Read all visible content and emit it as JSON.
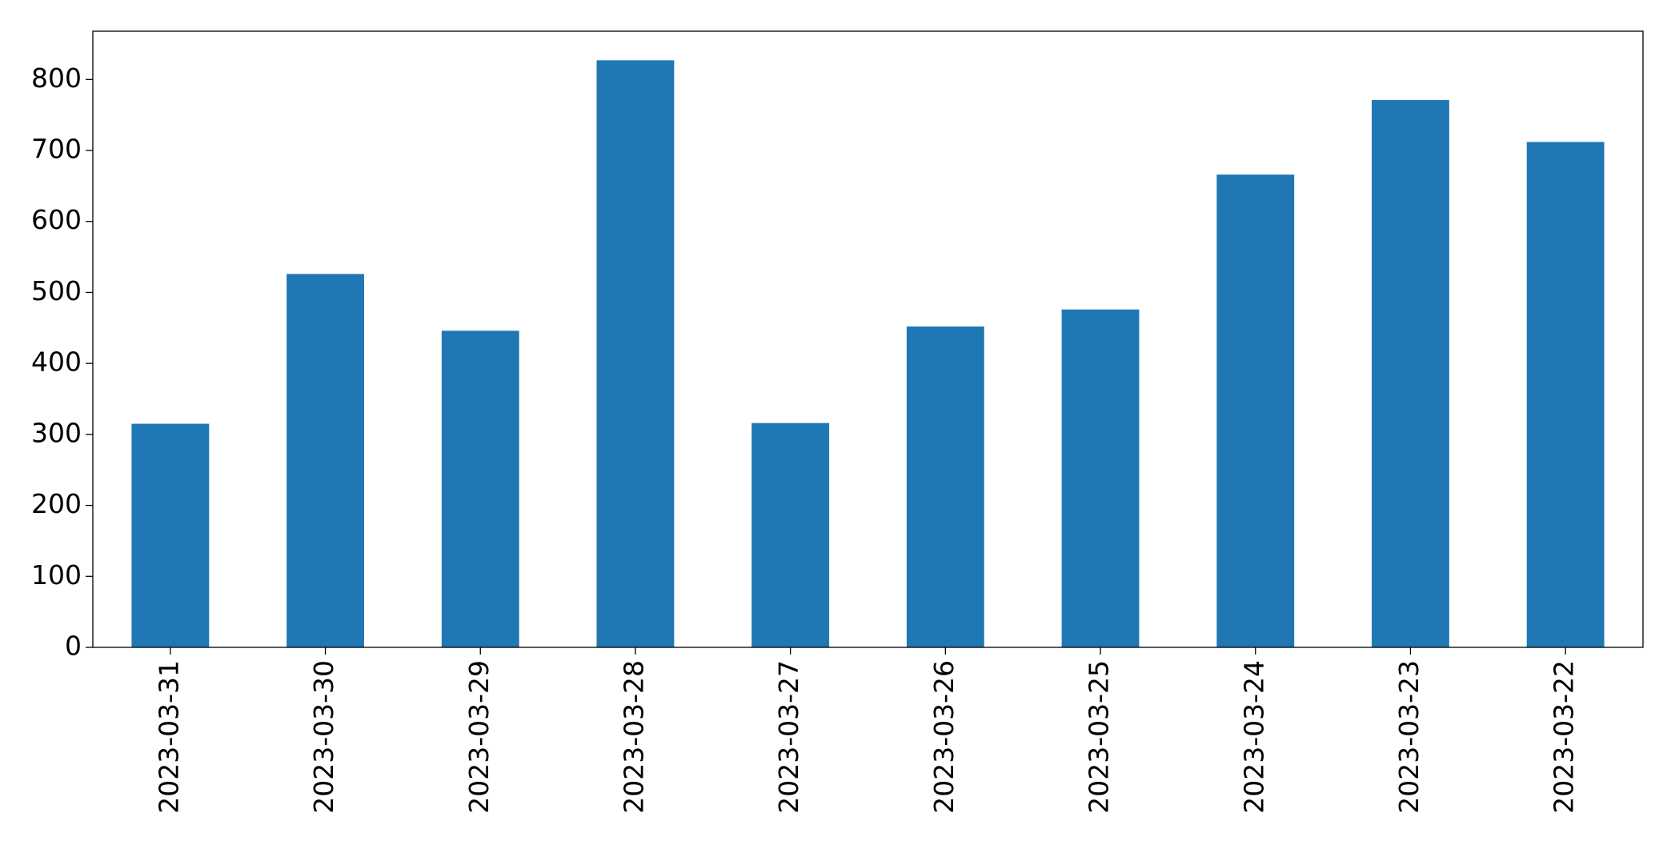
{
  "chart_data": {
    "type": "bar",
    "categories": [
      "2023-03-31",
      "2023-03-30",
      "2023-03-29",
      "2023-03-28",
      "2023-03-27",
      "2023-03-26",
      "2023-03-25",
      "2023-03-24",
      "2023-03-23",
      "2023-03-22"
    ],
    "values": [
      315,
      526,
      446,
      827,
      316,
      452,
      476,
      666,
      771,
      712
    ],
    "color": "#1f77b4",
    "ylim": [
      0,
      868
    ],
    "yticks": [
      0,
      100,
      200,
      300,
      400,
      500,
      600,
      700,
      800
    ],
    "grid": false
  }
}
